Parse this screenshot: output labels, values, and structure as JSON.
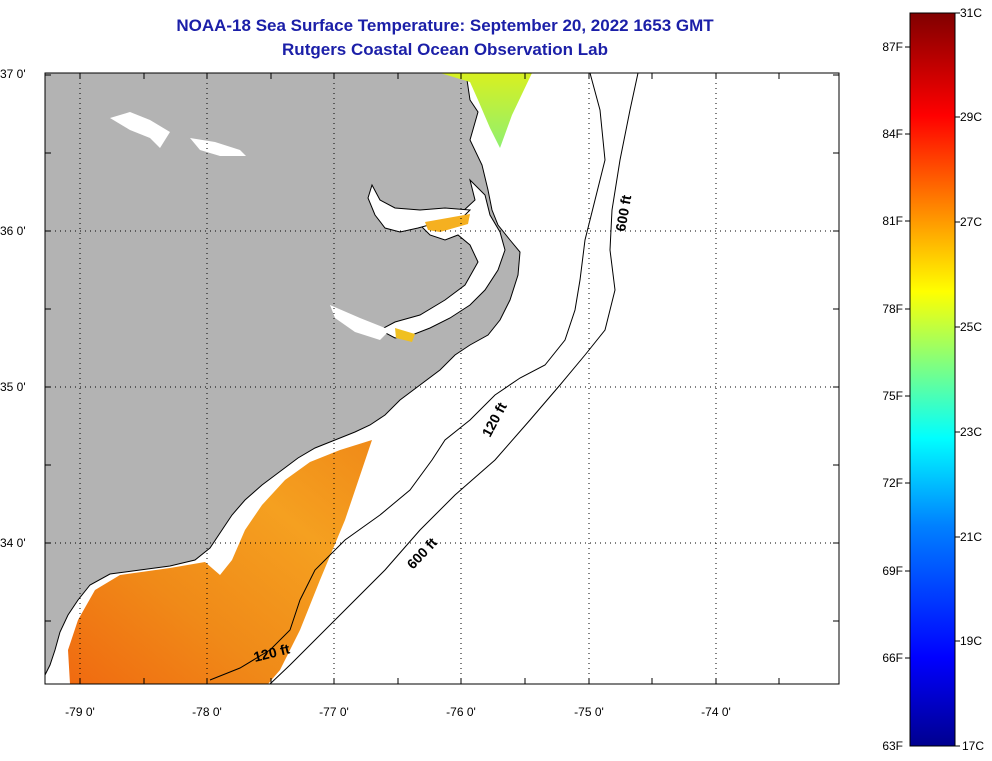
{
  "title": {
    "line1": "NOAA-18 Sea Surface Temperature:  September 20, 2022 1653 GMT",
    "line2": "Rutgers Coastal Ocean Observation Lab"
  },
  "map": {
    "latitude_labels": [
      "37 0'",
      "36 0'",
      "35 0'",
      "34 0'"
    ],
    "longitude_labels": [
      "-79 0'",
      "-78 0'",
      "-77 0'",
      "-76 0'",
      "-75 0'",
      "-74 0'"
    ],
    "contour_labels": [
      {
        "text": "600 ft"
      },
      {
        "text": "120 ft"
      },
      {
        "text": "600 ft"
      },
      {
        "text": "120 ft"
      }
    ],
    "land_color": "#b3b3b3",
    "water_color": "#ffffff"
  },
  "colorbar": {
    "fahrenheit_labels": [
      "87F",
      "84F",
      "81F",
      "78F",
      "75F",
      "72F",
      "69F",
      "66F",
      "63F"
    ],
    "celsius_labels": [
      "31C",
      "29C",
      "27C",
      "25C",
      "23C",
      "21C",
      "19C",
      "17C"
    ],
    "range_celsius": [
      17,
      31
    ],
    "colors_cold_to_hot": [
      "#00008f",
      "#0000ff",
      "#0080ff",
      "#00ffff",
      "#80ff80",
      "#ffff00",
      "#ff8000",
      "#ff0000",
      "#800000"
    ]
  }
}
